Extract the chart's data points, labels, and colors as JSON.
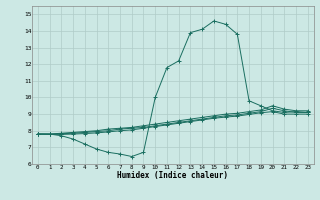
{
  "xlabel": "Humidex (Indice chaleur)",
  "ylabel": "",
  "xlim": [
    -0.5,
    23.5
  ],
  "ylim": [
    6,
    15.5
  ],
  "yticks": [
    6,
    7,
    8,
    9,
    10,
    11,
    12,
    13,
    14,
    15
  ],
  "xticks": [
    0,
    1,
    2,
    3,
    4,
    5,
    6,
    7,
    8,
    9,
    10,
    11,
    12,
    13,
    14,
    15,
    16,
    17,
    18,
    19,
    20,
    21,
    22,
    23
  ],
  "bg_color": "#cce8e4",
  "grid_color": "#b0ccc8",
  "line_color": "#1a6e60",
  "lines": [
    [
      7.8,
      7.8,
      7.7,
      7.5,
      7.2,
      6.9,
      6.7,
      6.6,
      6.45,
      6.7,
      10.0,
      11.8,
      12.2,
      13.9,
      14.1,
      14.6,
      14.4,
      13.8,
      9.8,
      9.5,
      9.2,
      9.1,
      9.15,
      9.1
    ],
    [
      7.8,
      7.8,
      7.85,
      7.9,
      7.95,
      8.0,
      8.1,
      8.15,
      8.2,
      8.3,
      8.4,
      8.5,
      8.6,
      8.7,
      8.8,
      8.9,
      9.0,
      9.05,
      9.15,
      9.25,
      9.5,
      9.3,
      9.2,
      9.2
    ],
    [
      7.8,
      7.8,
      7.82,
      7.85,
      7.9,
      7.95,
      8.0,
      8.1,
      8.15,
      8.2,
      8.3,
      8.4,
      8.5,
      8.6,
      8.7,
      8.8,
      8.9,
      8.95,
      9.05,
      9.15,
      9.35,
      9.2,
      9.1,
      9.1
    ],
    [
      7.8,
      7.78,
      7.78,
      7.8,
      7.83,
      7.87,
      7.93,
      8.0,
      8.05,
      8.15,
      8.25,
      8.35,
      8.45,
      8.55,
      8.65,
      8.75,
      8.82,
      8.88,
      8.98,
      9.08,
      9.15,
      9.0,
      9.0,
      9.0
    ]
  ]
}
